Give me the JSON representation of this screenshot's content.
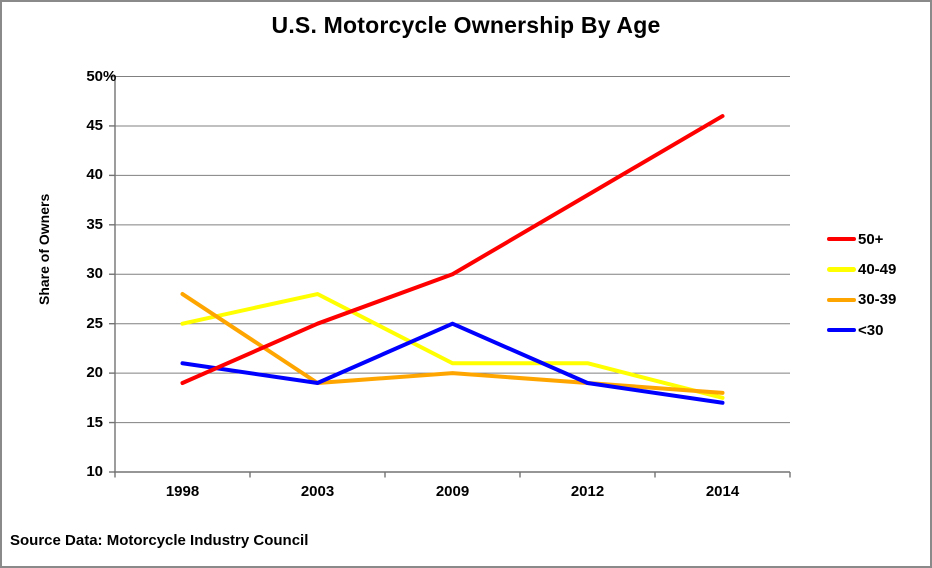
{
  "chart_data": {
    "type": "line",
    "title": "U.S. Motorcycle Ownership By Age",
    "ylabel": "Share of Owners",
    "source_note": "Source Data: Motorcycle Industry Council",
    "categories": [
      "1998",
      "2003",
      "2009",
      "2012",
      "2014"
    ],
    "series": [
      {
        "name": "50+",
        "color": "#FF0000",
        "values": [
          19,
          25,
          30,
          38,
          46
        ]
      },
      {
        "name": "40-49",
        "color": "#FFFF00",
        "values": [
          25,
          28,
          21,
          21,
          17.5
        ]
      },
      {
        "name": "30-39",
        "color": "#FFA500",
        "values": [
          28,
          19,
          20,
          19,
          18
        ]
      },
      {
        "name": "<30",
        "color": "#0000FF",
        "values": [
          21,
          19,
          25,
          19,
          17
        ]
      }
    ],
    "ylim": [
      10,
      50
    ],
    "ytick_step": 5,
    "yticks": [
      {
        "value": 50,
        "label": "50",
        "suffix": "%"
      },
      {
        "value": 45,
        "label": "45"
      },
      {
        "value": 40,
        "label": "40"
      },
      {
        "value": 35,
        "label": "35"
      },
      {
        "value": 30,
        "label": "30"
      },
      {
        "value": 25,
        "label": "25"
      },
      {
        "value": 20,
        "label": "20"
      },
      {
        "value": 15,
        "label": "15"
      },
      {
        "value": 10,
        "label": "10"
      }
    ],
    "grid": true,
    "legend_position": "right",
    "plot_draw_order_bottom_to_top": [
      "40-49",
      "30-39",
      "<30",
      "50+"
    ]
  },
  "colors": {
    "gridline": "#808080",
    "axis": "#737373",
    "frame_border": "#8A8A8A",
    "background": "#FFFFFF",
    "text": "#000000"
  }
}
